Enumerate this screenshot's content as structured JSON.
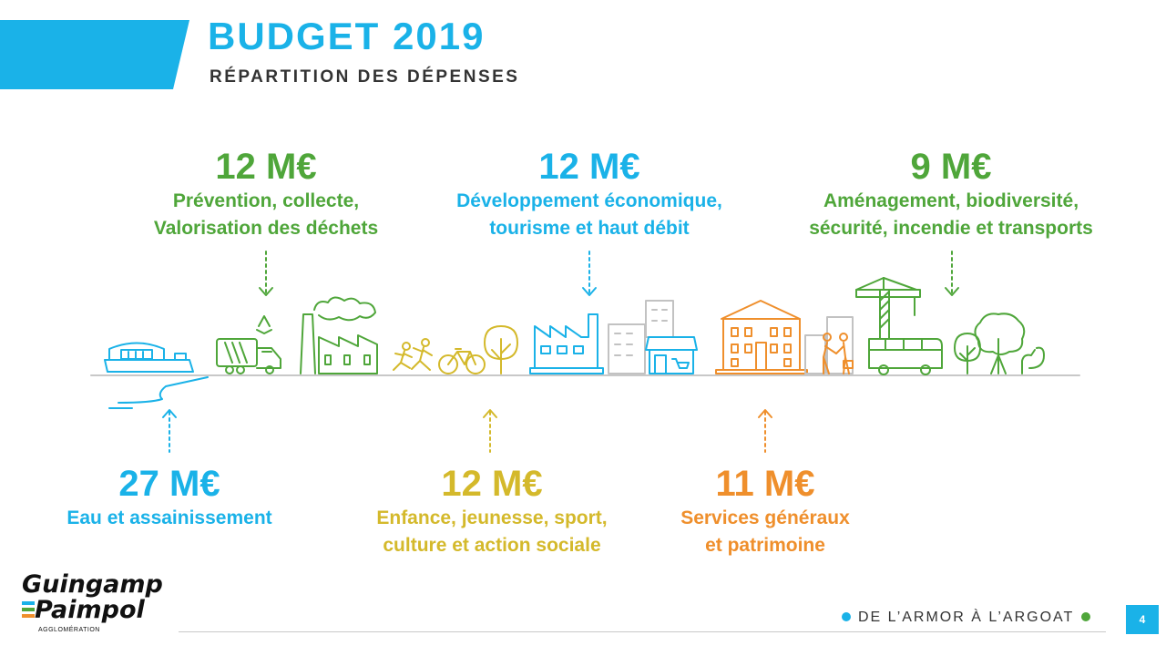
{
  "header": {
    "title": "BUDGET 2019",
    "subtitle": "RÉPARTITION DES DÉPENSES",
    "accent_color": "#1ab2e8"
  },
  "spending": {
    "waste": {
      "amount": "12 M€",
      "line1": "Prévention, collecte,",
      "line2": "Valorisation des déchets",
      "color": "#4fa63a"
    },
    "economy": {
      "amount": "12 M€",
      "line1": "Développement économique,",
      "line2": "tourisme et haut débit",
      "color": "#1ab2e8"
    },
    "planning": {
      "amount": "9 M€",
      "line1": "Aménagement, biodiversité,",
      "line2": "sécurité, incendie et transports",
      "color": "#4fa63a"
    },
    "water": {
      "amount": "27 M€",
      "line1": "Eau et assainissement",
      "color": "#1ab2e8"
    },
    "youth": {
      "amount": "12 M€",
      "line1": "Enfance, jeunesse, sport,",
      "line2": "culture et action sociale",
      "color": "#d4b92b"
    },
    "services": {
      "amount": "11 M€",
      "line1": "Services généraux",
      "line2": "et patrimoine",
      "color": "#ef8f2c"
    }
  },
  "logo": {
    "line1": "Guingamp",
    "line2": "Paimpol",
    "line3": "AGGLOMÉRATION",
    "bar_colors": [
      "#1ab2e8",
      "#4fa63a",
      "#ef8f2c"
    ]
  },
  "footer": {
    "tagline": "DE L’ARMOR À L’ARGOAT",
    "dot_left_color": "#1ab2e8",
    "dot_right_color": "#4fa63a",
    "page_number": "4"
  }
}
